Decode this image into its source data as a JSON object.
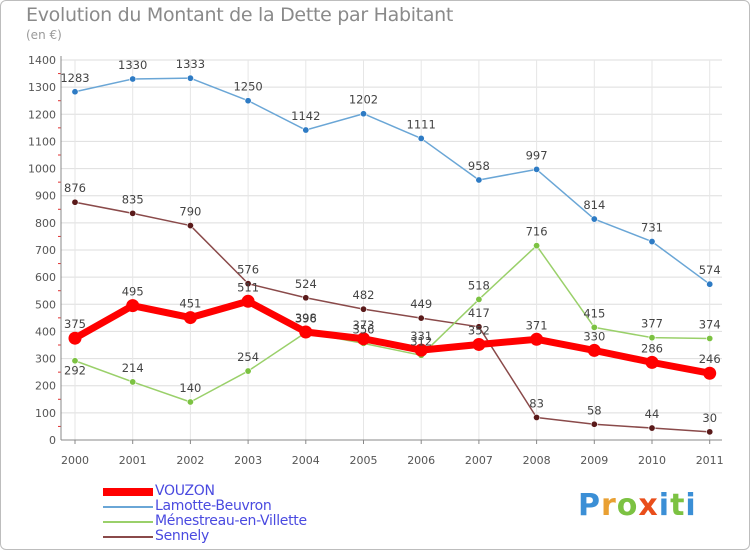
{
  "title": "Evolution du Montant de la Dette par Habitant",
  "subtitle": "(en €)",
  "logo": {
    "text": "Proxiti",
    "letters": [
      "P",
      "r",
      "o",
      "x",
      "i",
      "t",
      "i"
    ]
  },
  "chart_data": {
    "type": "line",
    "title": "Evolution du Montant de la Dette par Habitant",
    "ylabel": "(en €)",
    "xlabel": "",
    "ylim": [
      0,
      1400
    ],
    "yticks": [
      0,
      100,
      200,
      300,
      400,
      500,
      600,
      700,
      800,
      900,
      1000,
      1100,
      1200,
      1300,
      1400
    ],
    "grid": true,
    "legend_position": "bottom-left",
    "categories": [
      "2000",
      "2001",
      "2002",
      "2003",
      "2004",
      "2005",
      "2006",
      "2007",
      "2008",
      "2009",
      "2010",
      "2011"
    ],
    "series": [
      {
        "name": "Lamotte-Beuvron",
        "color": "#6aa6d6",
        "marker": "#2e7bc4",
        "values": [
          1283,
          1330,
          1333,
          1250,
          1142,
          1202,
          1111,
          958,
          997,
          814,
          731,
          574
        ]
      },
      {
        "name": "Sennely",
        "color": "#8a4a4a",
        "marker": "#5a1a1a",
        "values": [
          876,
          835,
          790,
          576,
          524,
          482,
          449,
          417,
          83,
          58,
          44,
          30
        ]
      },
      {
        "name": "Ménestreau-en-Villette",
        "color": "#9ad06a",
        "marker": "#7cc242",
        "values": [
          292,
          214,
          140,
          254,
          396,
          356,
          312,
          518,
          716,
          415,
          377,
          374
        ]
      },
      {
        "name": "VOUZON",
        "color": "#ff0000",
        "marker": "#ff0000",
        "values": [
          375,
          495,
          451,
          511,
          398,
          373,
          331,
          352,
          371,
          330,
          286,
          246
        ]
      }
    ],
    "labels": {
      "Lamotte-Beuvron": [
        "1283",
        "1330",
        "1333",
        "1250",
        "1142",
        "1202",
        "1111",
        "958",
        "997",
        "814",
        "731",
        "574"
      ],
      "Sennely": [
        "876",
        "835",
        "790",
        "576",
        "524",
        "482",
        "449",
        "417",
        "83",
        "58",
        "44",
        "30"
      ],
      "Ménestreau-en-Villette": [
        "292",
        "214",
        "140",
        "254",
        "396",
        "356",
        "312",
        "518",
        "716",
        "415",
        "377",
        "374"
      ],
      "VOUZON": [
        "375",
        "495",
        "451",
        "511",
        "398",
        "373",
        "331",
        "352",
        "371",
        "330",
        "286",
        "246"
      ]
    },
    "legend_order": [
      "VOUZON",
      "Lamotte-Beuvron",
      "Ménestreau-en-Villette",
      "Sennely"
    ]
  }
}
